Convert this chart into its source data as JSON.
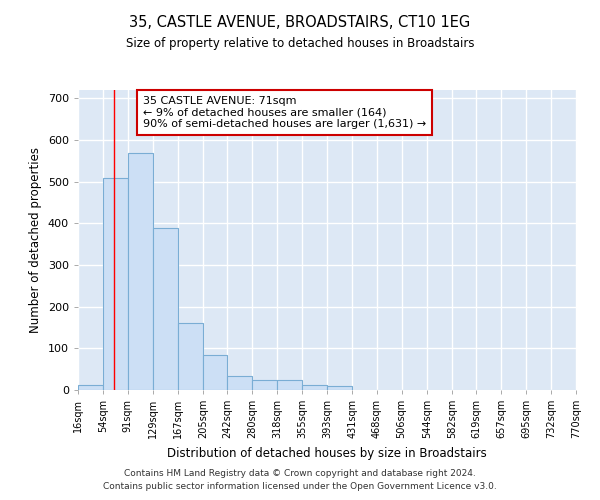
{
  "title": "35, CASTLE AVENUE, BROADSTAIRS, CT10 1EG",
  "subtitle": "Size of property relative to detached houses in Broadstairs",
  "xlabel": "Distribution of detached houses by size in Broadstairs",
  "ylabel": "Number of detached properties",
  "footer_line1": "Contains HM Land Registry data © Crown copyright and database right 2024.",
  "footer_line2": "Contains public sector information licensed under the Open Government Licence v3.0.",
  "bin_edges": [
    16,
    54,
    91,
    129,
    167,
    205,
    242,
    280,
    318,
    355,
    393,
    431,
    468,
    506,
    544,
    582,
    619,
    657,
    695,
    732,
    770
  ],
  "bar_heights": [
    13,
    510,
    568,
    388,
    160,
    83,
    33,
    23,
    23,
    12,
    10,
    0,
    0,
    0,
    0,
    0,
    0,
    0,
    0,
    0
  ],
  "bar_color": "#ccdff5",
  "bar_edge_color": "#7aadd4",
  "red_line_x": 71,
  "ylim": [
    0,
    720
  ],
  "yticks": [
    0,
    100,
    200,
    300,
    400,
    500,
    600,
    700
  ],
  "annotation_title": "35 CASTLE AVENUE: 71sqm",
  "annotation_line1": "← 9% of detached houses are smaller (164)",
  "annotation_line2": "90% of semi-detached houses are larger (1,631) →",
  "annotation_box_edge_color": "#cc0000",
  "bg_color": "#ffffff",
  "plot_bg_color": "#dde8f5",
  "grid_color": "#ffffff"
}
